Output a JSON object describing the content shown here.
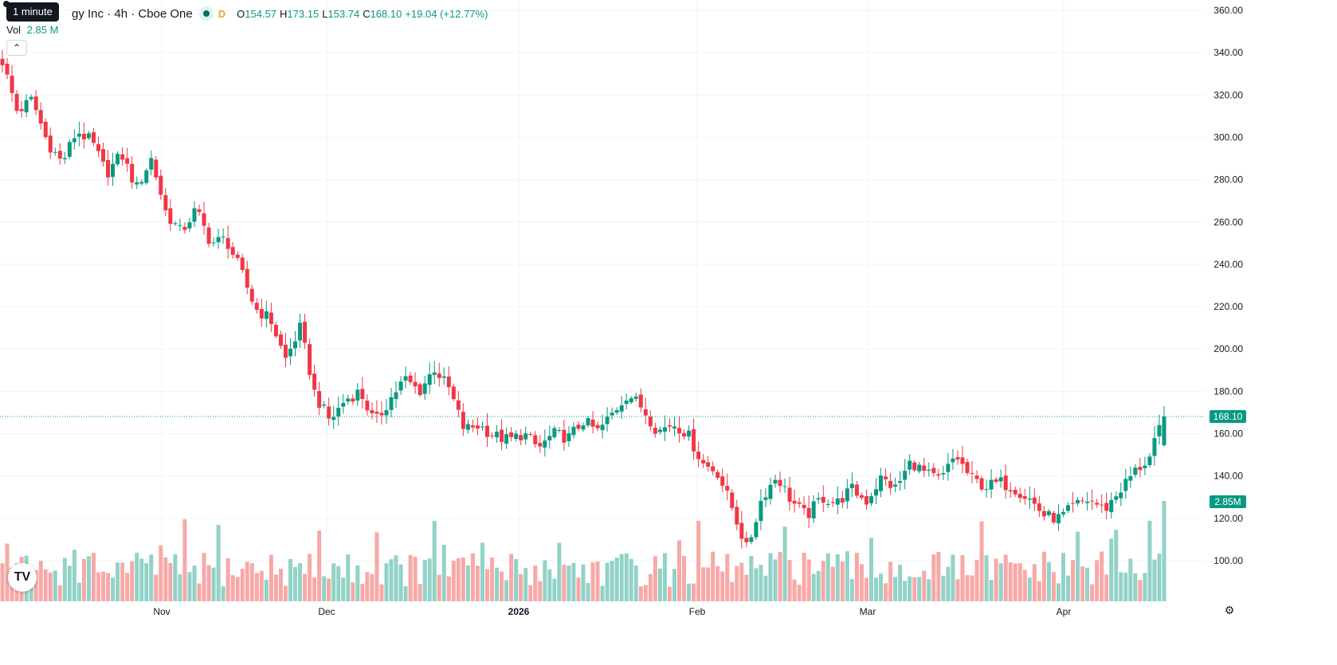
{
  "legend": {
    "title": "gy Inc · 4h · Cboe One",
    "interval_badge": "D",
    "open_label": "O",
    "open": "154.57",
    "high_label": "H",
    "high": "173.15",
    "low_label": "L",
    "low": "153.74",
    "close_label": "C",
    "close": "168.10",
    "change": "+19.04 (+12.77%)"
  },
  "tooltip": "1 minute",
  "volume_legend": {
    "label": "Vol",
    "value": "2.85 M"
  },
  "colors": {
    "up": "#089981",
    "down": "#f23645",
    "up_vol": "#92d2c7",
    "down_vol": "#f7a9a7",
    "grid": "#f0f3fa"
  },
  "chart_data": {
    "type": "candlestick",
    "y_axis": {
      "min": 80,
      "max": 360,
      "side": "right",
      "ticks": [
        "360.00",
        "340.00",
        "320.00",
        "300.00",
        "280.00",
        "260.00",
        "240.00",
        "220.00",
        "200.00",
        "180.00",
        "160.00",
        "140.00",
        "120.00",
        "100.00"
      ],
      "tick_values": [
        360,
        340,
        320,
        300,
        280,
        260,
        240,
        220,
        200,
        180,
        160,
        140,
        120,
        100
      ]
    },
    "x_axis": {
      "labels": [
        {
          "text": "Nov",
          "date": "2025-11-01",
          "bold": false
        },
        {
          "text": "Dec",
          "date": "2025-12-01",
          "bold": false
        },
        {
          "text": "2026",
          "date": "2026-01-01",
          "bold": true
        },
        {
          "text": "Feb",
          "date": "2026-02-01",
          "bold": false
        },
        {
          "text": "Mar",
          "date": "2026-03-01",
          "bold": false
        },
        {
          "text": "Apr",
          "date": "2026-04-01",
          "bold": false
        }
      ]
    },
    "grid": true,
    "last_price": {
      "value": 168.1,
      "label": "168.10"
    },
    "last_volume": {
      "label": "2.85M"
    },
    "keyframes": [
      [
        336,
        false
      ],
      [
        312,
        false
      ],
      [
        318,
        true
      ],
      [
        298,
        false
      ],
      [
        288,
        false
      ],
      [
        303,
        true
      ],
      [
        298,
        false
      ],
      [
        283,
        false
      ],
      [
        292,
        true
      ],
      [
        276,
        false
      ],
      [
        290,
        true
      ],
      [
        264,
        false
      ],
      [
        255,
        false
      ],
      [
        266,
        true
      ],
      [
        250,
        false
      ],
      [
        252,
        true
      ],
      [
        237,
        false
      ],
      [
        219,
        false
      ],
      [
        214,
        false
      ],
      [
        195,
        false
      ],
      [
        210,
        true
      ],
      [
        178,
        false
      ],
      [
        166,
        false
      ],
      [
        176,
        true
      ],
      [
        180,
        true
      ],
      [
        165,
        false
      ],
      [
        176,
        true
      ],
      [
        186,
        true
      ],
      [
        180,
        false
      ],
      [
        191,
        true
      ],
      [
        181,
        false
      ],
      [
        162,
        false
      ],
      [
        164,
        true
      ],
      [
        159,
        false
      ],
      [
        157,
        false
      ],
      [
        160,
        true
      ],
      [
        153,
        false
      ],
      [
        160,
        true
      ],
      [
        158,
        false
      ],
      [
        166,
        true
      ],
      [
        161,
        false
      ],
      [
        170,
        true
      ],
      [
        179,
        true
      ],
      [
        172,
        false
      ],
      [
        161,
        false
      ],
      [
        165,
        true
      ],
      [
        160,
        false
      ],
      [
        146,
        false
      ],
      [
        142,
        false
      ],
      [
        125,
        false
      ],
      [
        105,
        false
      ],
      [
        130,
        true
      ],
      [
        140,
        true
      ],
      [
        128,
        false
      ],
      [
        121,
        false
      ],
      [
        130,
        true
      ],
      [
        127,
        false
      ],
      [
        134,
        true
      ],
      [
        128,
        false
      ],
      [
        139,
        true
      ],
      [
        134,
        false
      ],
      [
        147,
        true
      ],
      [
        141,
        false
      ],
      [
        138,
        false
      ],
      [
        150,
        true
      ],
      [
        139,
        false
      ],
      [
        135,
        false
      ],
      [
        137,
        true
      ],
      [
        134,
        false
      ],
      [
        129,
        false
      ],
      [
        121,
        false
      ],
      [
        120,
        false
      ],
      [
        126,
        true
      ],
      [
        129,
        true
      ],
      [
        124,
        false
      ],
      [
        133,
        true
      ],
      [
        142,
        true
      ],
      [
        148,
        true
      ],
      [
        168.1,
        true
      ]
    ],
    "ohlc_last": {
      "open": 154.57,
      "high": 173.15,
      "low": 153.74,
      "close": 168.1
    },
    "volume_max": 3.0
  }
}
